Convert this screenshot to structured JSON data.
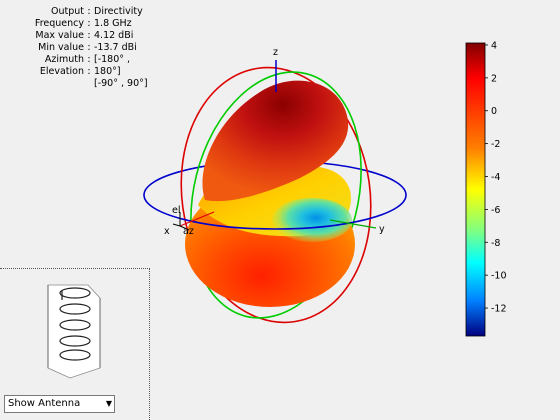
{
  "info": {
    "rows": [
      {
        "label": "Output",
        "value": "Directivity"
      },
      {
        "label": "Frequency",
        "value": "1.8 GHz"
      },
      {
        "label": "Max value",
        "value": "4.12 dBi"
      },
      {
        "label": "Min value",
        "value": "-13.7 dBi"
      },
      {
        "label": "Azimuth",
        "value": "[-180° ,"
      },
      {
        "label": "Elevation",
        "value": "180°]"
      },
      {
        "label": "",
        "value": "[-90° , 90°]"
      }
    ]
  },
  "axes": {
    "z": "z",
    "x": "x",
    "y": "y",
    "el": "el",
    "az": "az"
  },
  "colorbar": {
    "ticks": [
      "4",
      "2",
      "0",
      "-2",
      "-4",
      "-6",
      "-8",
      "-10",
      "-12"
    ],
    "tick_values": [
      4,
      2,
      0,
      -2,
      -4,
      -6,
      -8,
      -10,
      -12
    ],
    "min": -13.7,
    "max": 4.12
  },
  "colors": {
    "azimuth_circle": "#0000cc",
    "elevation_circle_red": "#dd0000",
    "elevation_circle_green": "#00cc00"
  },
  "antenna_panel": {
    "dropdown_label": "Show Antenna"
  }
}
